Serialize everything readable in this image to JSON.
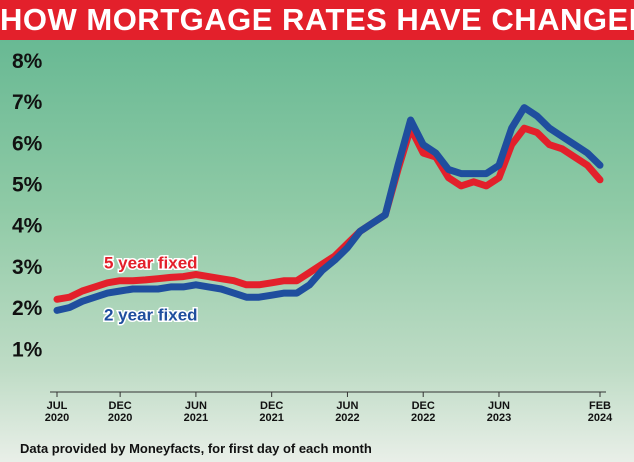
{
  "chart_data": {
    "type": "line",
    "title": "HOW MORTGAGE RATES HAVE CHANGED",
    "note": "Data provided by Moneyfacts, for first day of each month",
    "categories": [
      "JUL 2020",
      null,
      null,
      null,
      null,
      "DEC 2020",
      null,
      null,
      null,
      null,
      null,
      "JUN 2021",
      null,
      null,
      null,
      null,
      null,
      "DEC 2021",
      null,
      null,
      null,
      null,
      null,
      "JUN 2022",
      null,
      null,
      null,
      null,
      null,
      "DEC 2022",
      null,
      null,
      null,
      null,
      null,
      "JUN 2023",
      null,
      null,
      null,
      null,
      null,
      null,
      null,
      "FEB 2024"
    ],
    "series": [
      {
        "name": "5 year fixed",
        "color": "#e3202b",
        "values": [
          2.25,
          2.3,
          2.45,
          2.55,
          2.65,
          2.7,
          2.7,
          2.72,
          2.75,
          2.78,
          2.8,
          2.85,
          2.8,
          2.75,
          2.7,
          2.6,
          2.6,
          2.65,
          2.7,
          2.7,
          2.9,
          3.1,
          3.3,
          3.6,
          3.9,
          4.1,
          4.3,
          5.4,
          6.4,
          5.8,
          5.7,
          5.2,
          5.0,
          5.1,
          5.0,
          5.2,
          6.0,
          6.4,
          6.3,
          6.0,
          5.9,
          5.7,
          5.5,
          5.15
        ]
      },
      {
        "name": "2 year fixed",
        "color": "#1f4e9e",
        "values": [
          1.98,
          2.05,
          2.2,
          2.3,
          2.4,
          2.45,
          2.5,
          2.5,
          2.5,
          2.55,
          2.55,
          2.6,
          2.55,
          2.5,
          2.4,
          2.3,
          2.3,
          2.35,
          2.4,
          2.4,
          2.6,
          2.95,
          3.2,
          3.5,
          3.9,
          4.1,
          4.3,
          5.5,
          6.6,
          6.0,
          5.8,
          5.4,
          5.3,
          5.3,
          5.3,
          5.5,
          6.4,
          6.9,
          6.7,
          6.4,
          6.2,
          6.0,
          5.8,
          5.5
        ]
      }
    ],
    "ylim": [
      0,
      8.25
    ],
    "yticks": [
      {
        "value": 1,
        "label": "1%"
      },
      {
        "value": 2,
        "label": "2%"
      },
      {
        "value": 3,
        "label": "3%"
      },
      {
        "value": 4,
        "label": "4%"
      },
      {
        "value": 5,
        "label": "5%"
      },
      {
        "value": 6,
        "label": "6%"
      },
      {
        "value": 7,
        "label": "7%"
      },
      {
        "value": 8,
        "label": "8%"
      }
    ],
    "grid": false
  }
}
